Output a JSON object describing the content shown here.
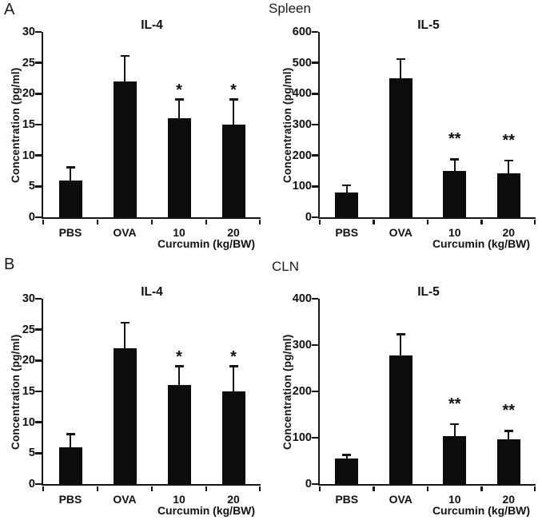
{
  "figure": {
    "panel_a_label": "A",
    "panel_b_label": "B",
    "row_a_title": "Spleen",
    "row_b_title": "CLN"
  },
  "colors": {
    "bar": "#0c0c0c",
    "axis": "#151515",
    "text": "#111111",
    "background": "#ffffff"
  },
  "chart_data": [
    {
      "id": "spleen-il4",
      "type": "bar",
      "title": "IL-4",
      "ylabel": "Concentration (pg/ml)",
      "group_xlabel": "Curcumin (kg/BW)",
      "categories": [
        "PBS",
        "OVA",
        "10",
        "20"
      ],
      "values": [
        6,
        22,
        16,
        15
      ],
      "errors_up": [
        2,
        4,
        3,
        4
      ],
      "significance": [
        "",
        "",
        "*",
        "*"
      ],
      "ylim": [
        0,
        30
      ],
      "ytick_step": 5,
      "grid": false,
      "legend": "none"
    },
    {
      "id": "spleen-il5",
      "type": "bar",
      "title": "IL-5",
      "ylabel": "Concentration (pg/ml)",
      "group_xlabel": "Curcumin (kg/BW)",
      "categories": [
        "PBS",
        "OVA",
        "10",
        "20"
      ],
      "values": [
        80,
        450,
        150,
        142
      ],
      "errors_up": [
        22,
        60,
        36,
        40
      ],
      "significance": [
        "",
        "",
        "**",
        "**"
      ],
      "ylim": [
        0,
        600
      ],
      "ytick_step": 100,
      "grid": false,
      "legend": "none"
    },
    {
      "id": "cln-il4",
      "type": "bar",
      "title": "IL-4",
      "ylabel": "Concentration (pg/ml)",
      "group_xlabel": "Curcumin (kg/BW)",
      "categories": [
        "PBS",
        "OVA",
        "10",
        "20"
      ],
      "values": [
        6,
        22,
        16,
        15
      ],
      "errors_up": [
        2,
        4,
        3,
        4
      ],
      "significance": [
        "",
        "",
        "*",
        "*"
      ],
      "ylim": [
        0,
        30
      ],
      "ytick_step": 5,
      "grid": false,
      "legend": "none"
    },
    {
      "id": "cln-il5",
      "type": "bar",
      "title": "IL-5",
      "ylabel": "Concentration (pg/ml)",
      "group_xlabel": "Curcumin (kg/BW)",
      "categories": [
        "PBS",
        "OVA",
        "10",
        "20"
      ],
      "values": [
        55,
        278,
        103,
        97
      ],
      "errors_up": [
        7,
        44,
        25,
        16
      ],
      "significance": [
        "",
        "",
        "**",
        "**"
      ],
      "ylim": [
        0,
        400
      ],
      "ytick_step": 100,
      "grid": false,
      "legend": "none"
    }
  ]
}
